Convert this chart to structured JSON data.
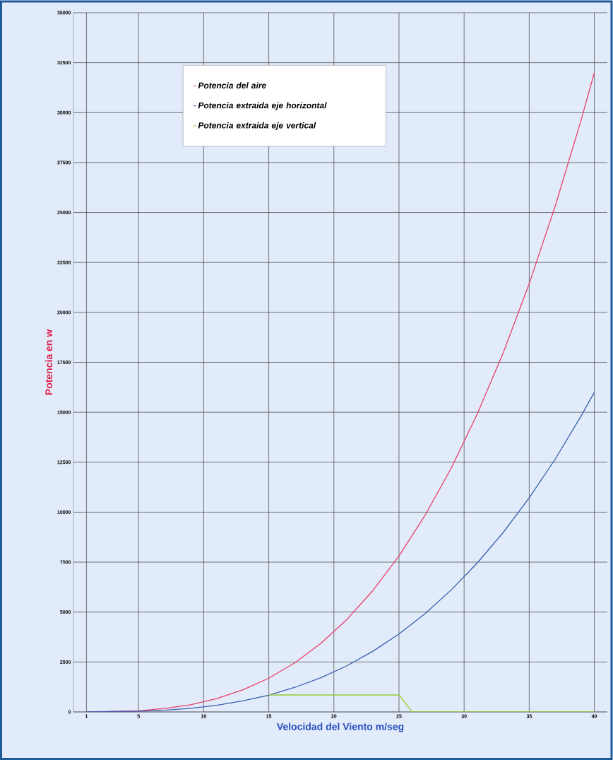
{
  "chart_data": {
    "type": "line",
    "xlabel": "Velocidad del Viento  m/seg",
    "ylabel": "Potencia en w",
    "xlim": [
      0,
      41
    ],
    "xticks": [
      1,
      5,
      10,
      15,
      20,
      25,
      30,
      35,
      40
    ],
    "ylim": [
      0,
      35000
    ],
    "yticks": [
      0,
      2500,
      5000,
      7500,
      10000,
      12500,
      15000,
      17500,
      20000,
      22500,
      25000,
      27500,
      30000,
      32500,
      35000
    ],
    "grid": true,
    "legend": "top left",
    "marker": "none",
    "line_style": "solid",
    "series": [
      {
        "name": "Potencia del aire",
        "color": "#e8406a",
        "x": [
          1,
          5,
          7,
          9,
          11,
          13,
          15,
          17,
          19,
          21,
          23,
          25,
          27,
          29,
          31,
          33,
          35,
          37,
          39,
          40
        ],
        "values": [
          0,
          60,
          170,
          360,
          670,
          1100,
          1690,
          2460,
          3430,
          4630,
          6080,
          7810,
          9840,
          12190,
          14900,
          17970,
          21440,
          25330,
          29660,
          32000
        ]
      },
      {
        "name": "Potencia extraida eje horizontal",
        "color": "#3a5fb0",
        "x": [
          1,
          5,
          7,
          9,
          11,
          13,
          15,
          17,
          19,
          21,
          23,
          25,
          27,
          29,
          31,
          33,
          35,
          37,
          39,
          40
        ],
        "values": [
          0,
          30,
          85,
          180,
          330,
          550,
          840,
          1230,
          1710,
          2310,
          3040,
          3900,
          4920,
          6100,
          7450,
          8980,
          10720,
          12660,
          14830,
          16000
        ]
      },
      {
        "name": "Potencia extraida eje vertical",
        "color": "#9acd32",
        "x": [
          15,
          25,
          26,
          40
        ],
        "values": [
          850,
          850,
          0,
          0
        ]
      }
    ]
  }
}
